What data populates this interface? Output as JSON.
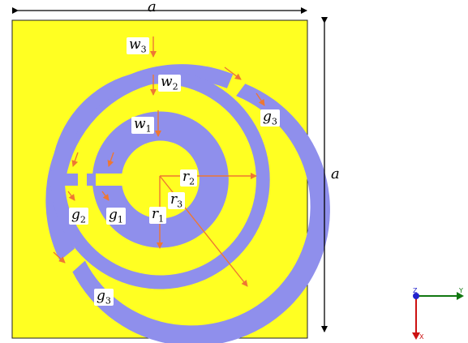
{
  "colors": {
    "substrate": "#FFFF22",
    "metal": "#8F8FEC",
    "arrow": "#EE7733",
    "dimension": "#000000",
    "axis_y": "#117711",
    "axis_x": "#CC1111",
    "axis_z": "#2222CC"
  },
  "labels": {
    "a_top": "a",
    "a_right": "a",
    "w3": {
      "base": "w",
      "sub": "3"
    },
    "w2": {
      "base": "w",
      "sub": "2"
    },
    "w1": {
      "base": "w",
      "sub": "1"
    },
    "g3_right": {
      "base": "g",
      "sub": "3"
    },
    "g3_bottom": {
      "base": "g",
      "sub": "3"
    },
    "g2": {
      "base": "g",
      "sub": "2"
    },
    "g1": {
      "base": "g",
      "sub": "1"
    },
    "r1": {
      "base": "r",
      "sub": "1"
    },
    "r2": {
      "base": "r",
      "sub": "2"
    },
    "r3": {
      "base": "r",
      "sub": "3"
    }
  },
  "triad": {
    "z": "Z",
    "y": "Y",
    "x": "X"
  }
}
